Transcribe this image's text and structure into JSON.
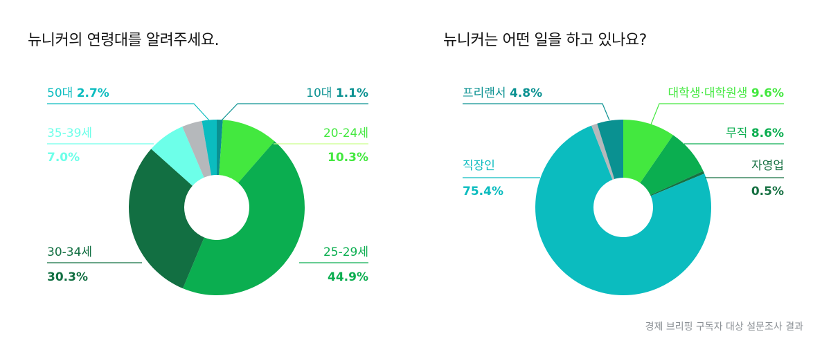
{
  "footer": "경제 브리핑 구독자 대상 설문조사 결과",
  "chart_data": [
    {
      "type": "pie",
      "title": "뉴니커의 연령대를 알려주세요.",
      "slices": [
        {
          "label": "10대",
          "value": 1.1,
          "value_text": "1.1%",
          "color": "#0a9191"
        },
        {
          "label": "20-24세",
          "value": 10.3,
          "value_text": "10.3%",
          "color": "#43e83f"
        },
        {
          "label": "25-29세",
          "value": 44.9,
          "value_text": "44.9%",
          "color": "#0bae50"
        },
        {
          "label": "30-34세",
          "value": 30.3,
          "value_text": "30.3%",
          "color": "#126f42"
        },
        {
          "label": "35-39세",
          "value": 7.0,
          "value_text": "7.0%",
          "color": "#6dffe9"
        },
        {
          "label": "",
          "value": 3.7,
          "value_text": "",
          "color": "#b5b8bb"
        },
        {
          "label": "50대",
          "value": 2.7,
          "value_text": "2.7%",
          "color": "#0bbcbf"
        }
      ]
    },
    {
      "type": "pie",
      "title": "뉴니커는 어떤 일을 하고 있나요?",
      "slices": [
        {
          "label": "대학생·대학원생",
          "value": 9.6,
          "value_text": "9.6%",
          "color": "#43e83f"
        },
        {
          "label": "무직",
          "value": 8.6,
          "value_text": "8.6%",
          "color": "#0bae50"
        },
        {
          "label": "자영업",
          "value": 0.5,
          "value_text": "0.5%",
          "color": "#167042"
        },
        {
          "label": "직장인",
          "value": 75.4,
          "value_text": "75.4%",
          "color": "#0bbcbf"
        },
        {
          "label": "",
          "value": 1.1,
          "value_text": "",
          "color": "#b5b8bb"
        },
        {
          "label": "프리랜서",
          "value": 4.8,
          "value_text": "4.8%",
          "color": "#0a9191"
        }
      ]
    }
  ]
}
